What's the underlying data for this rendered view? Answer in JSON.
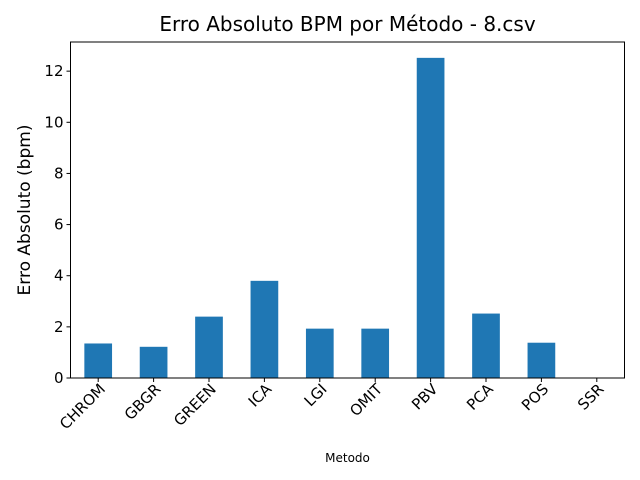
{
  "chart_data": {
    "type": "bar",
    "title": "Erro Absoluto BPM por Método - 8.csv",
    "xlabel": "Metodo",
    "ylabel": "Erro Absoluto (bpm)",
    "categories": [
      "CHROM",
      "GBGR",
      "GREEN",
      "ICA",
      "LGI",
      "OMIT",
      "PBV",
      "PCA",
      "POS",
      "SSR"
    ],
    "values": [
      1.35,
      1.22,
      2.4,
      3.8,
      1.93,
      1.93,
      12.52,
      2.52,
      1.38,
      0
    ],
    "ylim": [
      0,
      13.14
    ],
    "yticks": [
      0,
      2,
      4,
      6,
      8,
      10,
      12
    ],
    "grid": false,
    "bar_color": "#1f77b4"
  }
}
